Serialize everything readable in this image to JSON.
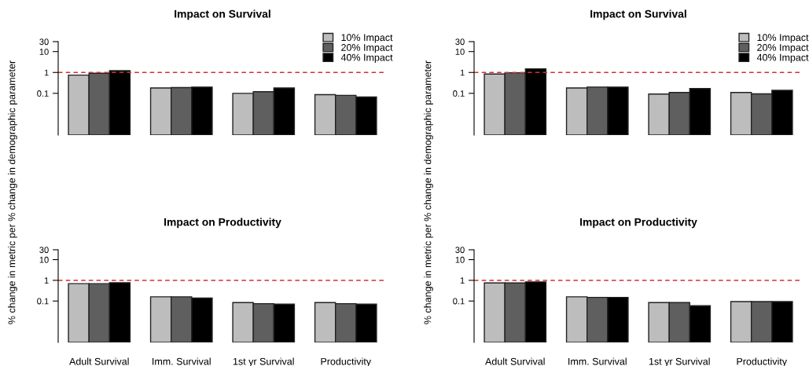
{
  "chart_data": [
    {
      "type": "bar",
      "title": "Impact on Survival",
      "ylabel": "% change in metric per % change in demographic parameter",
      "log": "y",
      "ylim": [
        0.001,
        30
      ],
      "yticks": [
        0.1,
        1,
        10,
        30
      ],
      "legend": "top right",
      "grid": false,
      "categories": [
        null,
        null,
        null,
        null
      ],
      "series": [
        {
          "name": "10% Impact",
          "color": "#bdbdbd",
          "values": [
            0.75,
            0.18,
            0.1,
            0.087
          ]
        },
        {
          "name": "20% Impact",
          "color": "#5f5f5f",
          "values": [
            0.92,
            0.19,
            0.12,
            0.08
          ]
        },
        {
          "name": "40% Impact",
          "color": "#000000",
          "values": [
            1.22,
            0.2,
            0.18,
            0.067
          ]
        }
      ],
      "ref_lines": [
        {
          "axis": "y",
          "value": 1,
          "color": "#cc3333",
          "line_style": "dashed"
        }
      ]
    },
    {
      "type": "bar",
      "title": "Impact on Survival",
      "ylabel": "% change in metric per % change in demographic parameter",
      "log": "y",
      "ylim": [
        0.001,
        30
      ],
      "yticks": [
        0.1,
        1,
        10,
        30
      ],
      "legend": "top right",
      "grid": false,
      "categories": [
        null,
        null,
        null,
        null
      ],
      "series": [
        {
          "name": "10% Impact",
          "color": "#bdbdbd",
          "values": [
            0.84,
            0.18,
            0.092,
            0.11
          ]
        },
        {
          "name": "20% Impact",
          "color": "#5f5f5f",
          "values": [
            0.97,
            0.2,
            0.11,
            0.094
          ]
        },
        {
          "name": "40% Impact",
          "color": "#000000",
          "values": [
            1.5,
            0.2,
            0.17,
            0.14
          ]
        }
      ],
      "ref_lines": [
        {
          "axis": "y",
          "value": 1,
          "color": "#cc3333",
          "line_style": "dashed"
        }
      ]
    },
    {
      "type": "bar",
      "title": "Impact on Productivity",
      "log": "y",
      "ylim": [
        0.001,
        30
      ],
      "yticks": [
        0.1,
        1,
        10,
        30
      ],
      "grid": false,
      "categories": [
        "Adult Survival",
        "Imm. Survival",
        "1st yr Survival",
        "Productivity"
      ],
      "series": [
        {
          "color": "#bdbdbd",
          "values": [
            0.69,
            0.16,
            0.084,
            0.084
          ]
        },
        {
          "color": "#5f5f5f",
          "values": [
            0.69,
            0.16,
            0.075,
            0.075
          ]
        },
        {
          "color": "#000000",
          "values": [
            0.77,
            0.14,
            0.071,
            0.071
          ]
        }
      ],
      "ref_lines": [
        {
          "axis": "y",
          "value": 1,
          "color": "#cc3333",
          "line_style": "dashed"
        }
      ]
    },
    {
      "type": "bar",
      "title": "Impact on Productivity",
      "log": "y",
      "ylim": [
        0.001,
        30
      ],
      "yticks": [
        0.1,
        1,
        10,
        30
      ],
      "grid": false,
      "categories": [
        "Adult Survival",
        "Imm. Survival",
        "1st yr Survival",
        "Productivity"
      ],
      "series": [
        {
          "color": "#bdbdbd",
          "values": [
            0.75,
            0.16,
            0.084,
            0.094
          ]
        },
        {
          "color": "#5f5f5f",
          "values": [
            0.75,
            0.15,
            0.084,
            0.094
          ]
        },
        {
          "color": "#000000",
          "values": [
            0.84,
            0.15,
            0.06,
            0.094
          ]
        }
      ],
      "ref_lines": [
        {
          "axis": "y",
          "value": 1,
          "color": "#cc3333",
          "line_style": "dashed"
        }
      ]
    }
  ]
}
